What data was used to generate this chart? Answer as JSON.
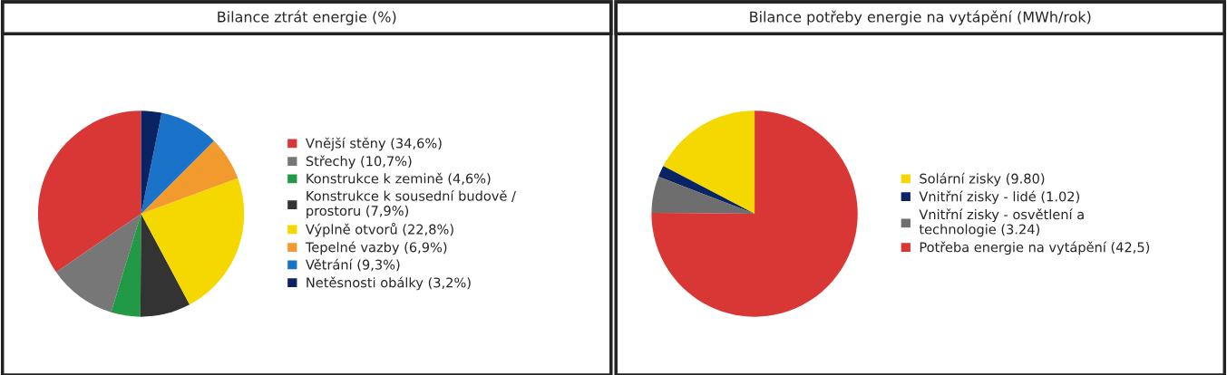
{
  "chart_data": [
    {
      "type": "pie",
      "title": "Bilance ztrát energie (%)",
      "categories": [
        "Vnější stěny (34,6%)",
        "Střechy (10,7%)",
        "Konstrukce k zemině (4,6%)",
        "Konstrukce k sousední budově /\nprostoru (7,9%)",
        "Výplně otvorů (22,8%)",
        "Tepelné vazby (6,9%)",
        "Větrání (9,3%)",
        "Netěsnosti obálky (3,2%)"
      ],
      "values": [
        34.6,
        10.7,
        4.6,
        7.9,
        22.8,
        6.9,
        9.3,
        3.2
      ],
      "colors": [
        "#d93636",
        "#777777",
        "#229944",
        "#333333",
        "#f5d800",
        "#f29a2e",
        "#1a73c9",
        "#0a2463"
      ],
      "legend": "right"
    },
    {
      "type": "pie",
      "title": "Bilance potřeby energie na vytápění (MWh/rok)",
      "categories": [
        "Solární zisky (9.80)",
        "Vnitřní zisky - lidé (1.02)",
        "Vnitřní zisky - osvětlení a\ntechnologie (3.24)",
        "Potřeba energie na vytápění (42,5)"
      ],
      "values": [
        9.8,
        1.02,
        3.24,
        42.5
      ],
      "colors": [
        "#f5d800",
        "#0a2463",
        "#6e6e6e",
        "#d93636"
      ],
      "legend": "right"
    }
  ]
}
